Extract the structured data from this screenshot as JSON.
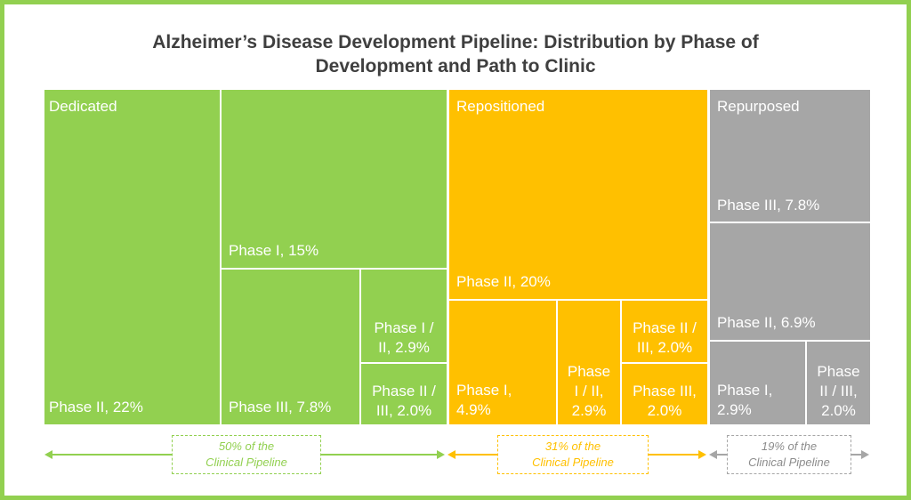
{
  "title": "Alzheimer’s Disease Development Pipeline: Distribution by Phase of Development and Path to Clinic",
  "colors": {
    "frame": "#92d050",
    "title": "#3f3f3f",
    "dedicated": "#92d050",
    "repositioned": "#ffc000",
    "repurposed": "#a6a6a6"
  },
  "chart_data": {
    "type": "treemap",
    "title": "Alzheimer’s Disease Development Pipeline: Distribution by Phase of Development and Path to Clinic",
    "groups": [
      {
        "name": "Dedicated",
        "share_label": "50% of the\nClinical Pipeline",
        "share": 50,
        "items": [
          {
            "label": "Phase II, 22%",
            "phase": "Phase II",
            "value": 22
          },
          {
            "label": "Phase I, 15%",
            "phase": "Phase I",
            "value": 15
          },
          {
            "label": "Phase III, 7.8%",
            "phase": "Phase III",
            "value": 7.8
          },
          {
            "label": "Phase I /\nII, 2.9%",
            "phase": "Phase I / II",
            "value": 2.9
          },
          {
            "label": "Phase II /\nIII, 2.0%",
            "phase": "Phase II / III",
            "value": 2.0
          }
        ]
      },
      {
        "name": "Repositioned",
        "share_label": "31% of the\nClinical Pipeline",
        "share": 31,
        "items": [
          {
            "label": "Phase II, 20%",
            "phase": "Phase II",
            "value": 20
          },
          {
            "label": "Phase I,\n4.9%",
            "phase": "Phase I",
            "value": 4.9
          },
          {
            "label": "Phase\nI / II,\n2.9%",
            "phase": "Phase I / II",
            "value": 2.9
          },
          {
            "label": "Phase II /\nIII, 2.0%",
            "phase": "Phase II / III",
            "value": 2.0
          },
          {
            "label": "Phase III,\n2.0%",
            "phase": "Phase III",
            "value": 2.0
          }
        ]
      },
      {
        "name": "Repurposed",
        "share_label": "19% of the\nClinical Pipeline",
        "share": 19,
        "items": [
          {
            "label": "Phase III, 7.8%",
            "phase": "Phase III",
            "value": 7.8
          },
          {
            "label": "Phase II, 6.9%",
            "phase": "Phase II",
            "value": 6.9
          },
          {
            "label": "Phase I,\n2.9%",
            "phase": "Phase I",
            "value": 2.9
          },
          {
            "label": "Phase\nII / III,\n2.0%",
            "phase": "Phase II / III",
            "value": 2.0
          }
        ]
      }
    ]
  }
}
